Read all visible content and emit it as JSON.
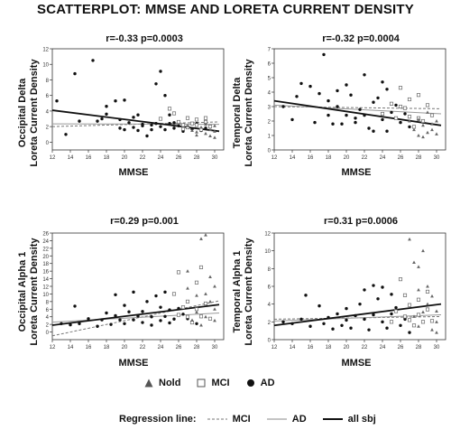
{
  "title": "SCATTERPLOT: MMSE AND LORETA CURRENT DENSITY",
  "legend": {
    "groups": [
      {
        "symbol": "triangle",
        "label": "Nold"
      },
      {
        "symbol": "square",
        "label": "MCI"
      },
      {
        "symbol": "circle",
        "label": "AD"
      }
    ],
    "regression_title": "Regression line:",
    "regression_lines": [
      {
        "style": "dashed",
        "label": "MCI"
      },
      {
        "style": "thin",
        "label": "AD"
      },
      {
        "style": "thick",
        "label": "all sbj"
      }
    ]
  },
  "chart_data": [
    {
      "type": "scatter",
      "title": "r=-0.33 p=0.0003",
      "ylabel": [
        "Occipital Delta",
        "Loreta Current Density"
      ],
      "xlabel": "MMSE",
      "xlim": [
        12,
        31
      ],
      "ylim": [
        -1,
        12
      ],
      "xticks": [
        12,
        14,
        16,
        18,
        20,
        22,
        24,
        26,
        28,
        30
      ],
      "yticks": [
        0,
        2,
        4,
        6,
        8,
        10,
        12
      ],
      "regression": {
        "all_sbj": [
          [
            12,
            4.1
          ],
          [
            30.5,
            1.4
          ]
        ],
        "AD": [
          [
            12,
            2.35
          ],
          [
            30.5,
            2.3
          ]
        ],
        "MCI": [
          [
            12,
            2.0
          ],
          [
            30.5,
            2.6
          ]
        ]
      },
      "points": {
        "AD": [
          [
            12.5,
            5.3
          ],
          [
            13.5,
            1.0
          ],
          [
            14.5,
            8.8
          ],
          [
            15,
            2.7
          ],
          [
            16.5,
            10.5
          ],
          [
            17,
            2.7
          ],
          [
            17.5,
            3.0
          ],
          [
            18,
            4.6
          ],
          [
            18,
            3.6
          ],
          [
            19,
            5.3
          ],
          [
            19.5,
            2.9
          ],
          [
            19.5,
            1.8
          ],
          [
            20,
            5.4
          ],
          [
            20,
            1.6
          ],
          [
            20.5,
            2.5
          ],
          [
            21,
            1.9
          ],
          [
            21,
            3.2
          ],
          [
            21.5,
            1.5
          ],
          [
            21.5,
            3.5
          ],
          [
            22,
            2.1
          ],
          [
            22,
            2.3
          ],
          [
            22.5,
            0.8
          ],
          [
            23,
            2.2
          ],
          [
            23,
            1.6
          ],
          [
            23.5,
            7.5
          ],
          [
            23.5,
            2.4
          ],
          [
            24,
            9.1
          ],
          [
            24,
            2.0
          ],
          [
            24.5,
            6.0
          ],
          [
            24.5,
            1.6
          ],
          [
            25,
            2.4
          ],
          [
            25,
            3.5
          ],
          [
            25.5,
            1.8
          ],
          [
            25.5,
            2.5
          ],
          [
            26,
            2.1
          ],
          [
            26.5,
            1.4
          ],
          [
            27,
            2.0
          ],
          [
            27.5,
            1.7
          ],
          [
            28,
            2.4
          ],
          [
            28.5,
            1.5
          ],
          [
            29,
            1.8
          ]
        ],
        "MCI": [
          [
            24,
            3.0
          ],
          [
            25,
            4.3
          ],
          [
            25.5,
            3.7
          ],
          [
            26,
            2.6
          ],
          [
            26.5,
            2.2
          ],
          [
            26.5,
            1.7
          ],
          [
            27,
            3.1
          ],
          [
            27,
            1.9
          ],
          [
            27.5,
            2.4
          ],
          [
            28,
            2.2
          ],
          [
            28,
            2.9
          ],
          [
            28.5,
            1.6
          ],
          [
            29,
            2.6
          ],
          [
            29.5,
            2.0
          ],
          [
            29,
            3.1
          ]
        ],
        "Nold": [
          [
            27,
            2.1
          ],
          [
            27.5,
            1.5
          ],
          [
            28,
            1.3
          ],
          [
            28.5,
            1.9
          ],
          [
            29,
            1.1
          ],
          [
            29,
            2.3
          ],
          [
            29.5,
            1.6
          ],
          [
            30,
            1.4
          ],
          [
            30,
            2.1
          ],
          [
            28,
            0.9
          ],
          [
            29.5,
            0.8
          ],
          [
            30,
            0.6
          ]
        ]
      }
    },
    {
      "type": "scatter",
      "title": "r=-0.32 p=0.0004",
      "ylabel": [
        "Temporal Delta",
        "Loreta Current Density"
      ],
      "xlabel": "MMSE",
      "xlim": [
        12,
        31
      ],
      "ylim": [
        0,
        7
      ],
      "xticks": [
        12,
        14,
        16,
        18,
        20,
        22,
        24,
        26,
        28,
        30
      ],
      "yticks": [
        0,
        1,
        2,
        3,
        4,
        5,
        6,
        7
      ],
      "regression": {
        "all_sbj": [
          [
            12,
            3.4
          ],
          [
            30.5,
            1.7
          ]
        ],
        "AD": [
          [
            12,
            3.1
          ],
          [
            30.5,
            2.5
          ]
        ],
        "MCI": [
          [
            12,
            3.0
          ],
          [
            30.5,
            2.85
          ]
        ]
      },
      "points": {
        "AD": [
          [
            13,
            3.0
          ],
          [
            14,
            2.1
          ],
          [
            14.5,
            3.7
          ],
          [
            15,
            4.6
          ],
          [
            16,
            4.4
          ],
          [
            16.5,
            1.9
          ],
          [
            17,
            3.9
          ],
          [
            17.5,
            6.6
          ],
          [
            18,
            3.4
          ],
          [
            18,
            2.4
          ],
          [
            18.5,
            1.8
          ],
          [
            19,
            3.0
          ],
          [
            19,
            4.1
          ],
          [
            19.5,
            1.8
          ],
          [
            20,
            4.5
          ],
          [
            20,
            2.4
          ],
          [
            20.5,
            3.8
          ],
          [
            21,
            2.2
          ],
          [
            21,
            1.9
          ],
          [
            21.5,
            2.8
          ],
          [
            22,
            5.2
          ],
          [
            22,
            2.4
          ],
          [
            22.5,
            1.5
          ],
          [
            23,
            3.3
          ],
          [
            23,
            1.3
          ],
          [
            23.5,
            3.6
          ],
          [
            24,
            4.7
          ],
          [
            24,
            2.1
          ],
          [
            24.5,
            4.2
          ],
          [
            24.5,
            1.3
          ],
          [
            25,
            2.6
          ],
          [
            25.5,
            3.1
          ],
          [
            26,
            1.9
          ],
          [
            26.5,
            2.5
          ],
          [
            27,
            1.6
          ]
        ],
        "MCI": [
          [
            24,
            2.5
          ],
          [
            25,
            3.2
          ],
          [
            25.5,
            2.2
          ],
          [
            26,
            4.3
          ],
          [
            26,
            3.0
          ],
          [
            26.5,
            2.9
          ],
          [
            27,
            3.5
          ],
          [
            27,
            2.3
          ],
          [
            27.5,
            1.6
          ],
          [
            28,
            3.8
          ],
          [
            28,
            2.2
          ],
          [
            28.5,
            2.0
          ],
          [
            29,
            3.1
          ],
          [
            29.5,
            2.4
          ]
        ],
        "Nold": [
          [
            27,
            2.0
          ],
          [
            27.5,
            1.4
          ],
          [
            28,
            2.1
          ],
          [
            28,
            1.0
          ],
          [
            28.5,
            1.7
          ],
          [
            29,
            2.6
          ],
          [
            29,
            1.2
          ],
          [
            29.5,
            1.8
          ],
          [
            30,
            2.0
          ],
          [
            30,
            1.1
          ],
          [
            28.5,
            0.9
          ],
          [
            29.5,
            1.4
          ]
        ]
      }
    },
    {
      "type": "scatter",
      "title": "r=0.29 p=0.001",
      "ylabel": [
        "Occipital Alpha 1",
        "Loreta Current Density"
      ],
      "xlabel": "MMSE",
      "xlim": [
        12,
        31
      ],
      "ylim": [
        -2,
        26
      ],
      "xticks": [
        12,
        14,
        16,
        18,
        20,
        22,
        24,
        26,
        28,
        30
      ],
      "yticks": [
        0,
        2,
        4,
        6,
        8,
        10,
        12,
        14,
        16,
        18,
        20,
        22,
        24,
        26
      ],
      "regression": {
        "all_sbj": [
          [
            12,
            1.8
          ],
          [
            30.5,
            7.2
          ]
        ],
        "AD": [
          [
            12,
            2.6
          ],
          [
            30.5,
            5.0
          ]
        ],
        "MCI": [
          [
            12,
            -1.0
          ],
          [
            30.5,
            8.2
          ]
        ]
      },
      "points": {
        "AD": [
          [
            13,
            2.2
          ],
          [
            14,
            1.9
          ],
          [
            14.5,
            6.8
          ],
          [
            15,
            2.2
          ],
          [
            16,
            3.5
          ],
          [
            17,
            1.5
          ],
          [
            17.5,
            3.2
          ],
          [
            18,
            5.0
          ],
          [
            18.5,
            2.0
          ],
          [
            19,
            9.8
          ],
          [
            19,
            4.3
          ],
          [
            19.5,
            3.2
          ],
          [
            20,
            7.0
          ],
          [
            20,
            2.2
          ],
          [
            20.5,
            5.3
          ],
          [
            21,
            10.5
          ],
          [
            21,
            3.2
          ],
          [
            21.5,
            4.2
          ],
          [
            22,
            5.4
          ],
          [
            22,
            2.5
          ],
          [
            22.5,
            8.0
          ],
          [
            23,
            4.0
          ],
          [
            23,
            1.8
          ],
          [
            23.5,
            9.5
          ],
          [
            24,
            6.5
          ],
          [
            24,
            3.0
          ],
          [
            24.5,
            10.5
          ],
          [
            24.5,
            4.1
          ],
          [
            25,
            5.8
          ],
          [
            25,
            2.4
          ],
          [
            25.5,
            3.4
          ],
          [
            26,
            6.2
          ],
          [
            26.5,
            4.7
          ],
          [
            27,
            3.5
          ],
          [
            28,
            2.2
          ]
        ],
        "MCI": [
          [
            25.5,
            10.0
          ],
          [
            26,
            4.5
          ],
          [
            26,
            15.7
          ],
          [
            26.5,
            6.5
          ],
          [
            27,
            4.0
          ],
          [
            27,
            8.0
          ],
          [
            27.5,
            2.5
          ],
          [
            28,
            6.0
          ],
          [
            28,
            13.0
          ],
          [
            28.5,
            4.1
          ],
          [
            29,
            7.5
          ],
          [
            29.5,
            3.5
          ],
          [
            28.5,
            17.0
          ]
        ],
        "Nold": [
          [
            27,
            16.0
          ],
          [
            27,
            11.5
          ],
          [
            28,
            9.6
          ],
          [
            28,
            5.2
          ],
          [
            28.5,
            24.5
          ],
          [
            29,
            25.5
          ],
          [
            29,
            10.0
          ],
          [
            29,
            4.0
          ],
          [
            29.5,
            8.0
          ],
          [
            30,
            6.0
          ],
          [
            30,
            3.0
          ],
          [
            28.5,
            1.8
          ],
          [
            27.5,
            3.1
          ],
          [
            30,
            12.0
          ],
          [
            29.5,
            14.5
          ]
        ]
      }
    },
    {
      "type": "scatter",
      "title": "r=0.31 p=0.0006",
      "ylabel": [
        "Temporal Alpha 1",
        "Loreta Current Density"
      ],
      "xlabel": "MMSE",
      "xlim": [
        12,
        31
      ],
      "ylim": [
        0,
        12
      ],
      "xticks": [
        12,
        14,
        16,
        18,
        20,
        22,
        24,
        26,
        28,
        30
      ],
      "yticks": [
        0,
        2,
        4,
        6,
        8,
        10,
        12
      ],
      "regression": {
        "all_sbj": [
          [
            12,
            1.6
          ],
          [
            30.5,
            4.0
          ]
        ],
        "AD": [
          [
            12,
            2.1
          ],
          [
            30.5,
            2.8
          ]
        ],
        "MCI": [
          [
            12,
            2.3
          ],
          [
            30.5,
            2.6
          ]
        ]
      },
      "points": {
        "AD": [
          [
            13,
            2.0
          ],
          [
            14,
            1.8
          ],
          [
            15,
            2.3
          ],
          [
            15.5,
            5.0
          ],
          [
            16,
            1.5
          ],
          [
            17,
            3.8
          ],
          [
            17.5,
            1.8
          ],
          [
            18,
            2.5
          ],
          [
            18.5,
            1.2
          ],
          [
            19,
            2.9
          ],
          [
            19.5,
            1.6
          ],
          [
            20,
            3.5
          ],
          [
            20,
            2.2
          ],
          [
            20.5,
            1.3
          ],
          [
            21,
            2.7
          ],
          [
            21.5,
            4.0
          ],
          [
            22,
            5.6
          ],
          [
            22,
            2.3
          ],
          [
            22.5,
            1.1
          ],
          [
            23,
            6.1
          ],
          [
            23,
            2.8
          ],
          [
            23.5,
            4.6
          ],
          [
            24,
            5.9
          ],
          [
            24,
            2.0
          ],
          [
            24.5,
            1.3
          ],
          [
            25,
            2.9
          ],
          [
            25,
            5.1
          ],
          [
            25.5,
            3.6
          ],
          [
            26,
            1.6
          ],
          [
            26.5,
            2.3
          ],
          [
            27,
            0.8
          ]
        ],
        "MCI": [
          [
            25,
            2.0
          ],
          [
            25.5,
            3.2
          ],
          [
            26,
            6.8
          ],
          [
            26.5,
            5.0
          ],
          [
            26.5,
            2.6
          ],
          [
            27,
            3.9
          ],
          [
            27,
            2.2
          ],
          [
            27.5,
            1.6
          ],
          [
            28,
            4.5
          ],
          [
            28,
            2.8
          ],
          [
            28.5,
            2.0
          ],
          [
            29,
            3.4
          ],
          [
            29.5,
            2.1
          ],
          [
            29,
            5.4
          ]
        ],
        "Nold": [
          [
            27,
            11.3
          ],
          [
            27.5,
            8.7
          ],
          [
            28,
            8.2
          ],
          [
            28,
            5.6
          ],
          [
            28.5,
            3.1
          ],
          [
            29,
            6.0
          ],
          [
            29,
            4.0
          ],
          [
            29.5,
            4.9
          ],
          [
            30,
            3.2
          ],
          [
            30,
            2.0
          ],
          [
            28,
            1.5
          ],
          [
            29.5,
            1.1
          ],
          [
            30,
            0.8
          ],
          [
            27.5,
            2.6
          ],
          [
            28.5,
            10.0
          ]
        ]
      }
    }
  ]
}
